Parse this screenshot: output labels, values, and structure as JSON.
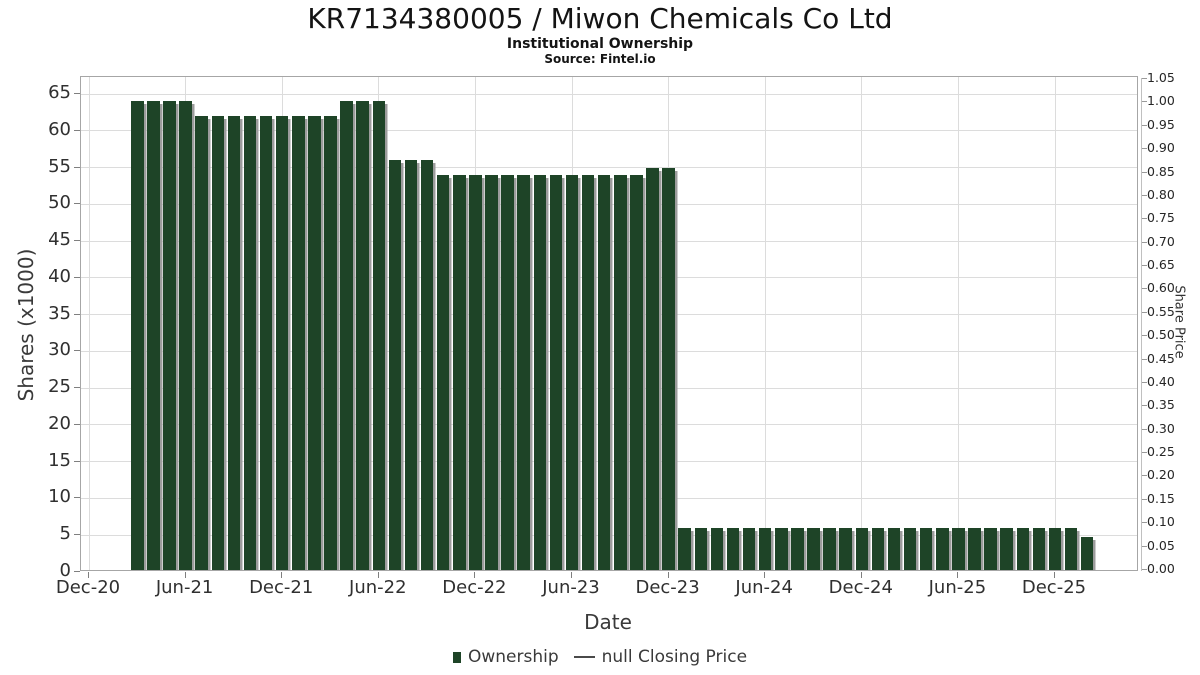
{
  "header": {
    "title": "KR7134380005 / Miwon Chemicals Co Ltd",
    "subtitle": "Institutional Ownership",
    "source": "Source: Fintel.io"
  },
  "colors": {
    "bar": "#1e4427",
    "bar_shadow": "#9c9c9c",
    "grid": "#dcdcdc",
    "closing_price_line": "#4a4a4a"
  },
  "chart_data": {
    "type": "bar",
    "title": "KR7134380005 / Miwon Chemicals Co Ltd",
    "subtitle": "Institutional Ownership",
    "source": "Source: Fintel.io",
    "xlabel": "Date",
    "x_axis": {
      "label": "Date",
      "tick_labels": [
        "Dec-20",
        "Jun-21",
        "Dec-21",
        "Jun-22",
        "Dec-22",
        "Jun-23",
        "Dec-23",
        "Jun-24",
        "Dec-24",
        "Jun-25",
        "Dec-25"
      ]
    },
    "y_left": {
      "label": "Shares (x1000)",
      "ticks": [
        0,
        5,
        10,
        15,
        20,
        25,
        30,
        35,
        40,
        45,
        50,
        55,
        60,
        65
      ],
      "ylim": [
        0,
        65
      ]
    },
    "y_right": {
      "label": "Share Price",
      "ticks": [
        "0.00",
        "0.05",
        "0.10",
        "0.15",
        "0.20",
        "0.25",
        "0.30",
        "0.35",
        "0.40",
        "0.45",
        "0.50",
        "0.55",
        "0.60",
        "0.65",
        "0.70",
        "0.75",
        "0.80",
        "0.85",
        "0.90",
        "0.95",
        "1.00",
        "1.05"
      ],
      "ylim": [
        0.0,
        1.05
      ]
    },
    "grid": true,
    "legend_position": "bottom-center",
    "series": [
      {
        "name": "Ownership",
        "type": "bar",
        "units": "shares x1000",
        "points": [
          {
            "d": "Mar-21",
            "v": 64
          },
          {
            "d": "Apr-21",
            "v": 64
          },
          {
            "d": "May-21",
            "v": 64
          },
          {
            "d": "Jun-21",
            "v": 64
          },
          {
            "d": "Jul-21",
            "v": 62
          },
          {
            "d": "Aug-21",
            "v": 62
          },
          {
            "d": "Sep-21",
            "v": 62
          },
          {
            "d": "Oct-21",
            "v": 62
          },
          {
            "d": "Nov-21",
            "v": 62
          },
          {
            "d": "Dec-21",
            "v": 62
          },
          {
            "d": "Jan-22",
            "v": 62
          },
          {
            "d": "Feb-22",
            "v": 62
          },
          {
            "d": "Mar-22",
            "v": 62
          },
          {
            "d": "Apr-22",
            "v": 64
          },
          {
            "d": "May-22",
            "v": 64
          },
          {
            "d": "Jun-22",
            "v": 64
          },
          {
            "d": "Jul-22",
            "v": 56
          },
          {
            "d": "Aug-22",
            "v": 56
          },
          {
            "d": "Sep-22",
            "v": 56
          },
          {
            "d": "Oct-22",
            "v": 54
          },
          {
            "d": "Nov-22",
            "v": 54
          },
          {
            "d": "Dec-22",
            "v": 54
          },
          {
            "d": "Jan-23",
            "v": 54
          },
          {
            "d": "Feb-23",
            "v": 54
          },
          {
            "d": "Mar-23",
            "v": 54
          },
          {
            "d": "Apr-23",
            "v": 54
          },
          {
            "d": "May-23",
            "v": 54
          },
          {
            "d": "Jun-23",
            "v": 54
          },
          {
            "d": "Jul-23",
            "v": 54
          },
          {
            "d": "Aug-23",
            "v": 54
          },
          {
            "d": "Sep-23",
            "v": 54
          },
          {
            "d": "Oct-23",
            "v": 54
          },
          {
            "d": "Nov-23",
            "v": 55
          },
          {
            "d": "Dec-23",
            "v": 55
          },
          {
            "d": "Jan-24",
            "v": 6
          },
          {
            "d": "Feb-24",
            "v": 6
          },
          {
            "d": "Mar-24",
            "v": 6
          },
          {
            "d": "Apr-24",
            "v": 6
          },
          {
            "d": "May-24",
            "v": 6
          },
          {
            "d": "Jun-24",
            "v": 6
          },
          {
            "d": "Jul-24",
            "v": 6
          },
          {
            "d": "Aug-24",
            "v": 6
          },
          {
            "d": "Sep-24",
            "v": 6
          },
          {
            "d": "Oct-24",
            "v": 6
          },
          {
            "d": "Nov-24",
            "v": 6
          },
          {
            "d": "Dec-24",
            "v": 6
          },
          {
            "d": "Jan-25",
            "v": 6
          },
          {
            "d": "Feb-25",
            "v": 6
          },
          {
            "d": "Mar-25",
            "v": 6
          },
          {
            "d": "Apr-25",
            "v": 6
          },
          {
            "d": "May-25",
            "v": 6
          },
          {
            "d": "Jun-25",
            "v": 6
          },
          {
            "d": "Jul-25",
            "v": 6
          },
          {
            "d": "Aug-25",
            "v": 6
          },
          {
            "d": "Sep-25",
            "v": 6
          },
          {
            "d": "Oct-25",
            "v": 6
          },
          {
            "d": "Nov-25",
            "v": 6
          },
          {
            "d": "Dec-25",
            "v": 6
          },
          {
            "d": "Jan-26",
            "v": 6
          },
          {
            "d": "Feb-26",
            "v": 4.8
          }
        ]
      },
      {
        "name": "null Closing Price",
        "type": "line",
        "points": []
      }
    ],
    "legend": [
      {
        "label": "Ownership",
        "marker": "square",
        "color": "#1e4427"
      },
      {
        "label": "null Closing Price",
        "marker": "line",
        "color": "#4a4a4a"
      }
    ]
  }
}
